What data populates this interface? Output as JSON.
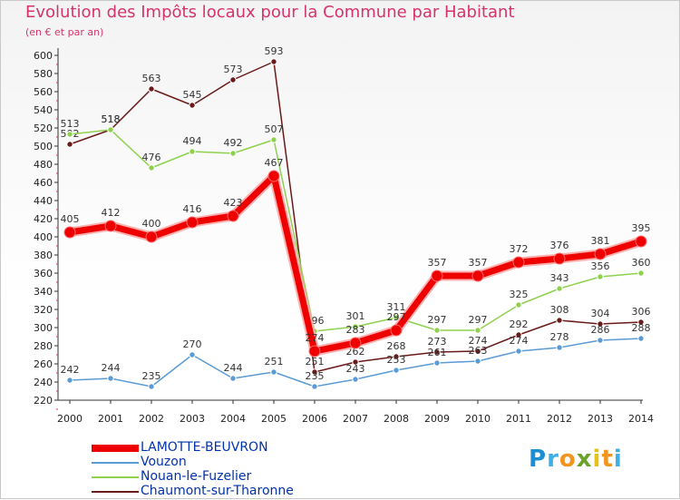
{
  "title": "Evolution des Impôts locaux pour la Commune par Habitant",
  "subtitle": "(en € et par an)",
  "logo": {
    "letters": [
      "P",
      "r",
      "o",
      "x",
      "i",
      "t",
      "i"
    ],
    "colors": [
      "#1b8fd3",
      "#3cb1e6",
      "#f2941d",
      "#6aa12a",
      "#e2c21b",
      "#f2941d",
      "#3cb1e6"
    ]
  },
  "chart_data": {
    "type": "line",
    "title": "Evolution des Impôts locaux pour la Commune par Habitant",
    "subtitle": "(en € et par an)",
    "x": [
      "2000",
      "2001",
      "2002",
      "2003",
      "2004",
      "2005",
      "2006",
      "2007",
      "2008",
      "2009",
      "2010",
      "2011",
      "2012",
      "2013",
      "2014"
    ],
    "ylim": [
      220,
      600
    ],
    "yticks": [
      220,
      240,
      260,
      280,
      300,
      320,
      340,
      360,
      380,
      400,
      420,
      440,
      460,
      480,
      500,
      520,
      540,
      560,
      580,
      600
    ],
    "grid": false,
    "legend_position": "bottom-left",
    "series": [
      {
        "name": "LAMOTTE-BEUVRON",
        "color": "#ee0000",
        "values": [
          405,
          412,
          400,
          416,
          423,
          467,
          274,
          283,
          297,
          357,
          357,
          372,
          376,
          381,
          395
        ]
      },
      {
        "name": "Vouzon",
        "color": "#5b9bd5",
        "values": [
          242,
          244,
          235,
          270,
          244,
          251,
          235,
          243,
          253,
          261,
          263,
          274,
          278,
          286,
          288
        ]
      },
      {
        "name": "Nouan-le-Fuzelier",
        "color": "#8fd14f",
        "values": [
          513,
          518,
          476,
          494,
          492,
          507,
          296,
          301,
          311,
          297,
          297,
          325,
          343,
          356,
          360
        ]
      },
      {
        "name": "Chaumont-sur-Tharonne",
        "color": "#6b1a1a",
        "values": [
          502,
          518,
          563,
          545,
          573,
          593,
          251,
          262,
          268,
          273,
          274,
          292,
          308,
          304,
          306
        ]
      }
    ]
  }
}
